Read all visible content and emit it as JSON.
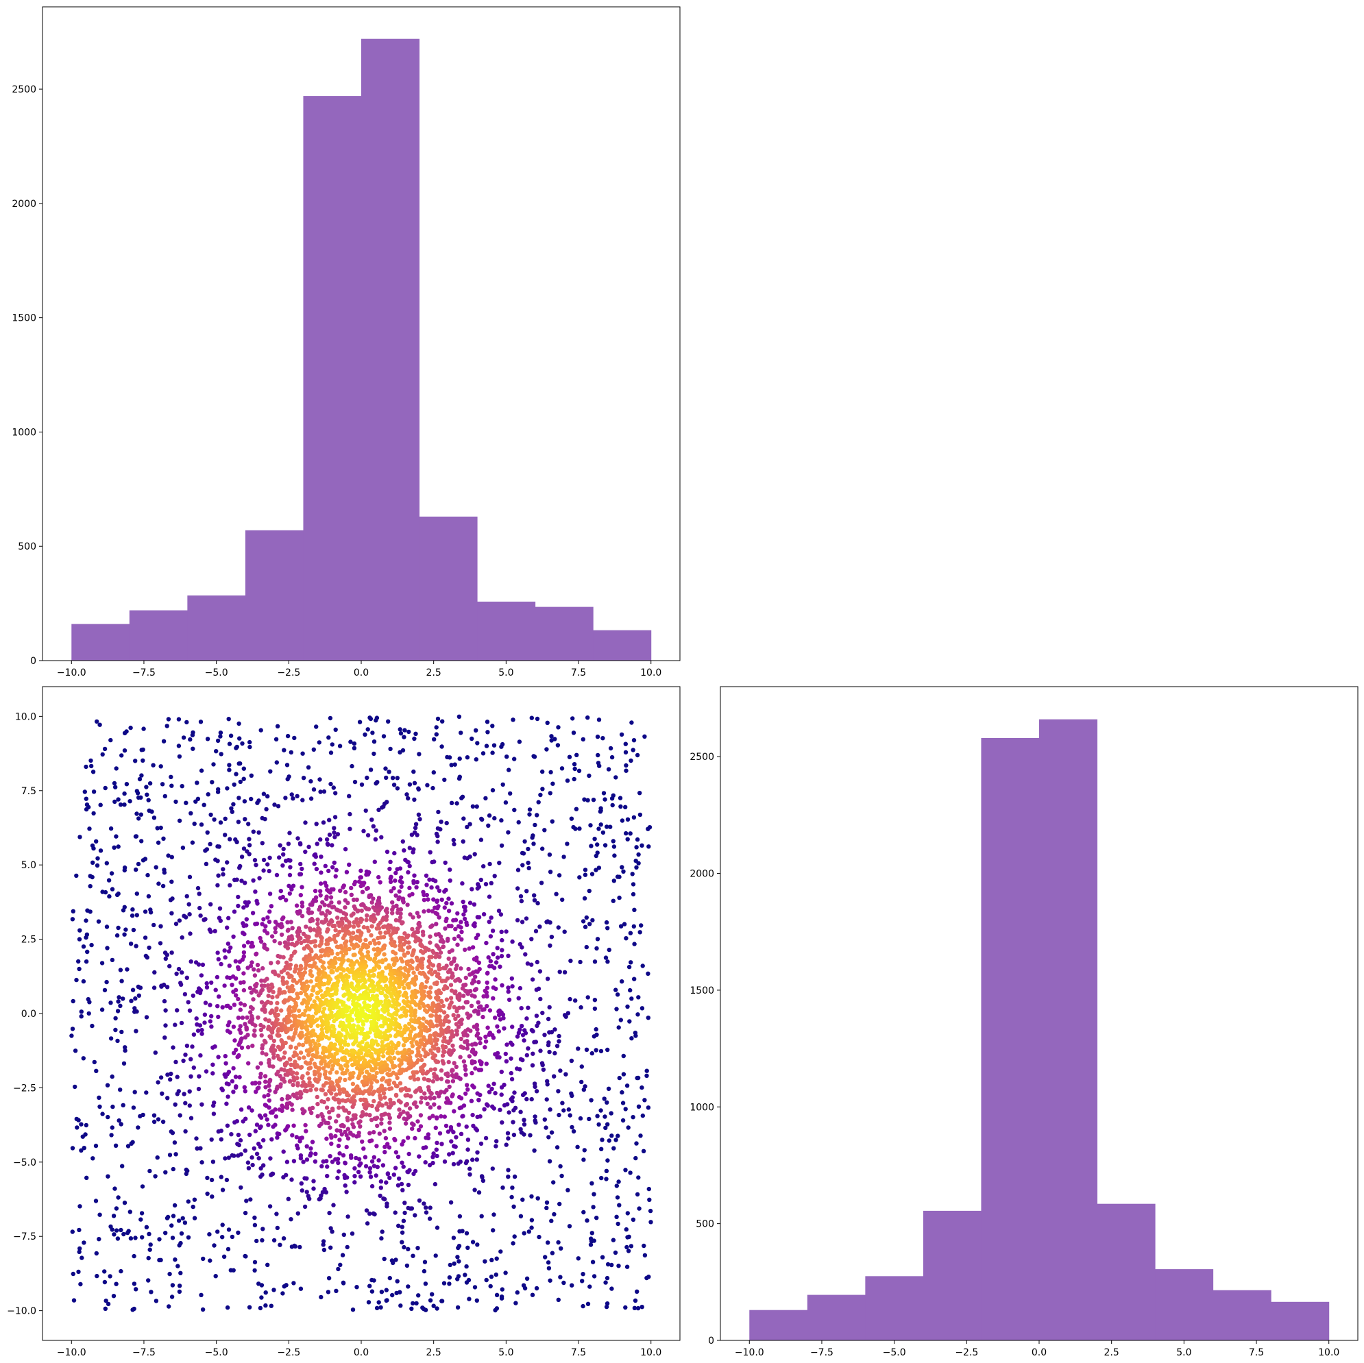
{
  "figure": {
    "background": "#ffffff"
  },
  "chart_data": [
    {
      "id": "top_histogram",
      "type": "bar",
      "bin_edges": [
        -10,
        -8,
        -6,
        -4,
        -2,
        0,
        2,
        4,
        6,
        8,
        10
      ],
      "values": [
        160,
        220,
        285,
        570,
        2470,
        2720,
        630,
        258,
        235,
        133
      ],
      "xlim": [
        -11,
        11
      ],
      "ylim": [
        0,
        2860
      ],
      "x_ticks": [
        -10,
        -7.5,
        -5,
        -2.5,
        0,
        2.5,
        5,
        7.5,
        10
      ],
      "x_tick_labels": [
        "−10.0",
        "−7.5",
        "−5.0",
        "−2.5",
        "0.0",
        "2.5",
        "5.0",
        "7.5",
        "10.0"
      ],
      "y_ticks": [
        0,
        500,
        1000,
        1500,
        2000,
        2500
      ],
      "y_tick_labels": [
        "0",
        "500",
        "1000",
        "1500",
        "2000",
        "2500"
      ],
      "color": "#9467bd",
      "grid": false
    },
    {
      "id": "scatter",
      "type": "scatter",
      "description_of_points": "~5000 points; dense Gaussian-like cluster centered at (0, 0) plus uniform background over [-10, 10] x [-10, 10]; colored by local density (plasma colormap: low=#0d0887 dark blue, high=#f0f921 yellow)",
      "xlim": [
        -11,
        11
      ],
      "ylim": [
        -11,
        11
      ],
      "x_ticks": [
        -10,
        -7.5,
        -5,
        -2.5,
        0,
        2.5,
        5,
        7.5,
        10
      ],
      "x_tick_labels": [
        "−10.0",
        "−7.5",
        "−5.0",
        "−2.5",
        "0.0",
        "2.5",
        "5.0",
        "7.5",
        "10.0"
      ],
      "y_ticks": [
        -10,
        -7.5,
        -5,
        -2.5,
        0,
        2.5,
        5,
        7.5,
        10
      ],
      "y_tick_labels": [
        "−10.0",
        "−7.5",
        "−5.0",
        "−2.5",
        "0.0",
        "2.5",
        "5.0",
        "7.5",
        "10.0"
      ],
      "colormap": [
        "#0d0887",
        "#5302a3",
        "#8b0aa5",
        "#b83289",
        "#db5c68",
        "#f48849",
        "#febd2a",
        "#f0f921"
      ],
      "grid": false
    },
    {
      "id": "right_histogram",
      "type": "bar",
      "bin_edges": [
        -10,
        -8,
        -6,
        -4,
        -2,
        0,
        2,
        4,
        6,
        8,
        10
      ],
      "values": [
        130,
        195,
        275,
        555,
        2580,
        2660,
        585,
        305,
        215,
        165
      ],
      "xlim": [
        -11,
        11
      ],
      "ylim": [
        0,
        2800
      ],
      "x_ticks": [
        -10,
        -7.5,
        -5,
        -2.5,
        0,
        2.5,
        5,
        7.5,
        10
      ],
      "x_tick_labels": [
        "−10.0",
        "−7.5",
        "−5.0",
        "−2.5",
        "0.0",
        "2.5",
        "5.0",
        "7.5",
        "10.0"
      ],
      "y_ticks": [
        0,
        500,
        1000,
        1500,
        2000,
        2500
      ],
      "y_tick_labels": [
        "0",
        "500",
        "1000",
        "1500",
        "2000",
        "2500"
      ],
      "color": "#9467bd",
      "grid": false
    }
  ]
}
